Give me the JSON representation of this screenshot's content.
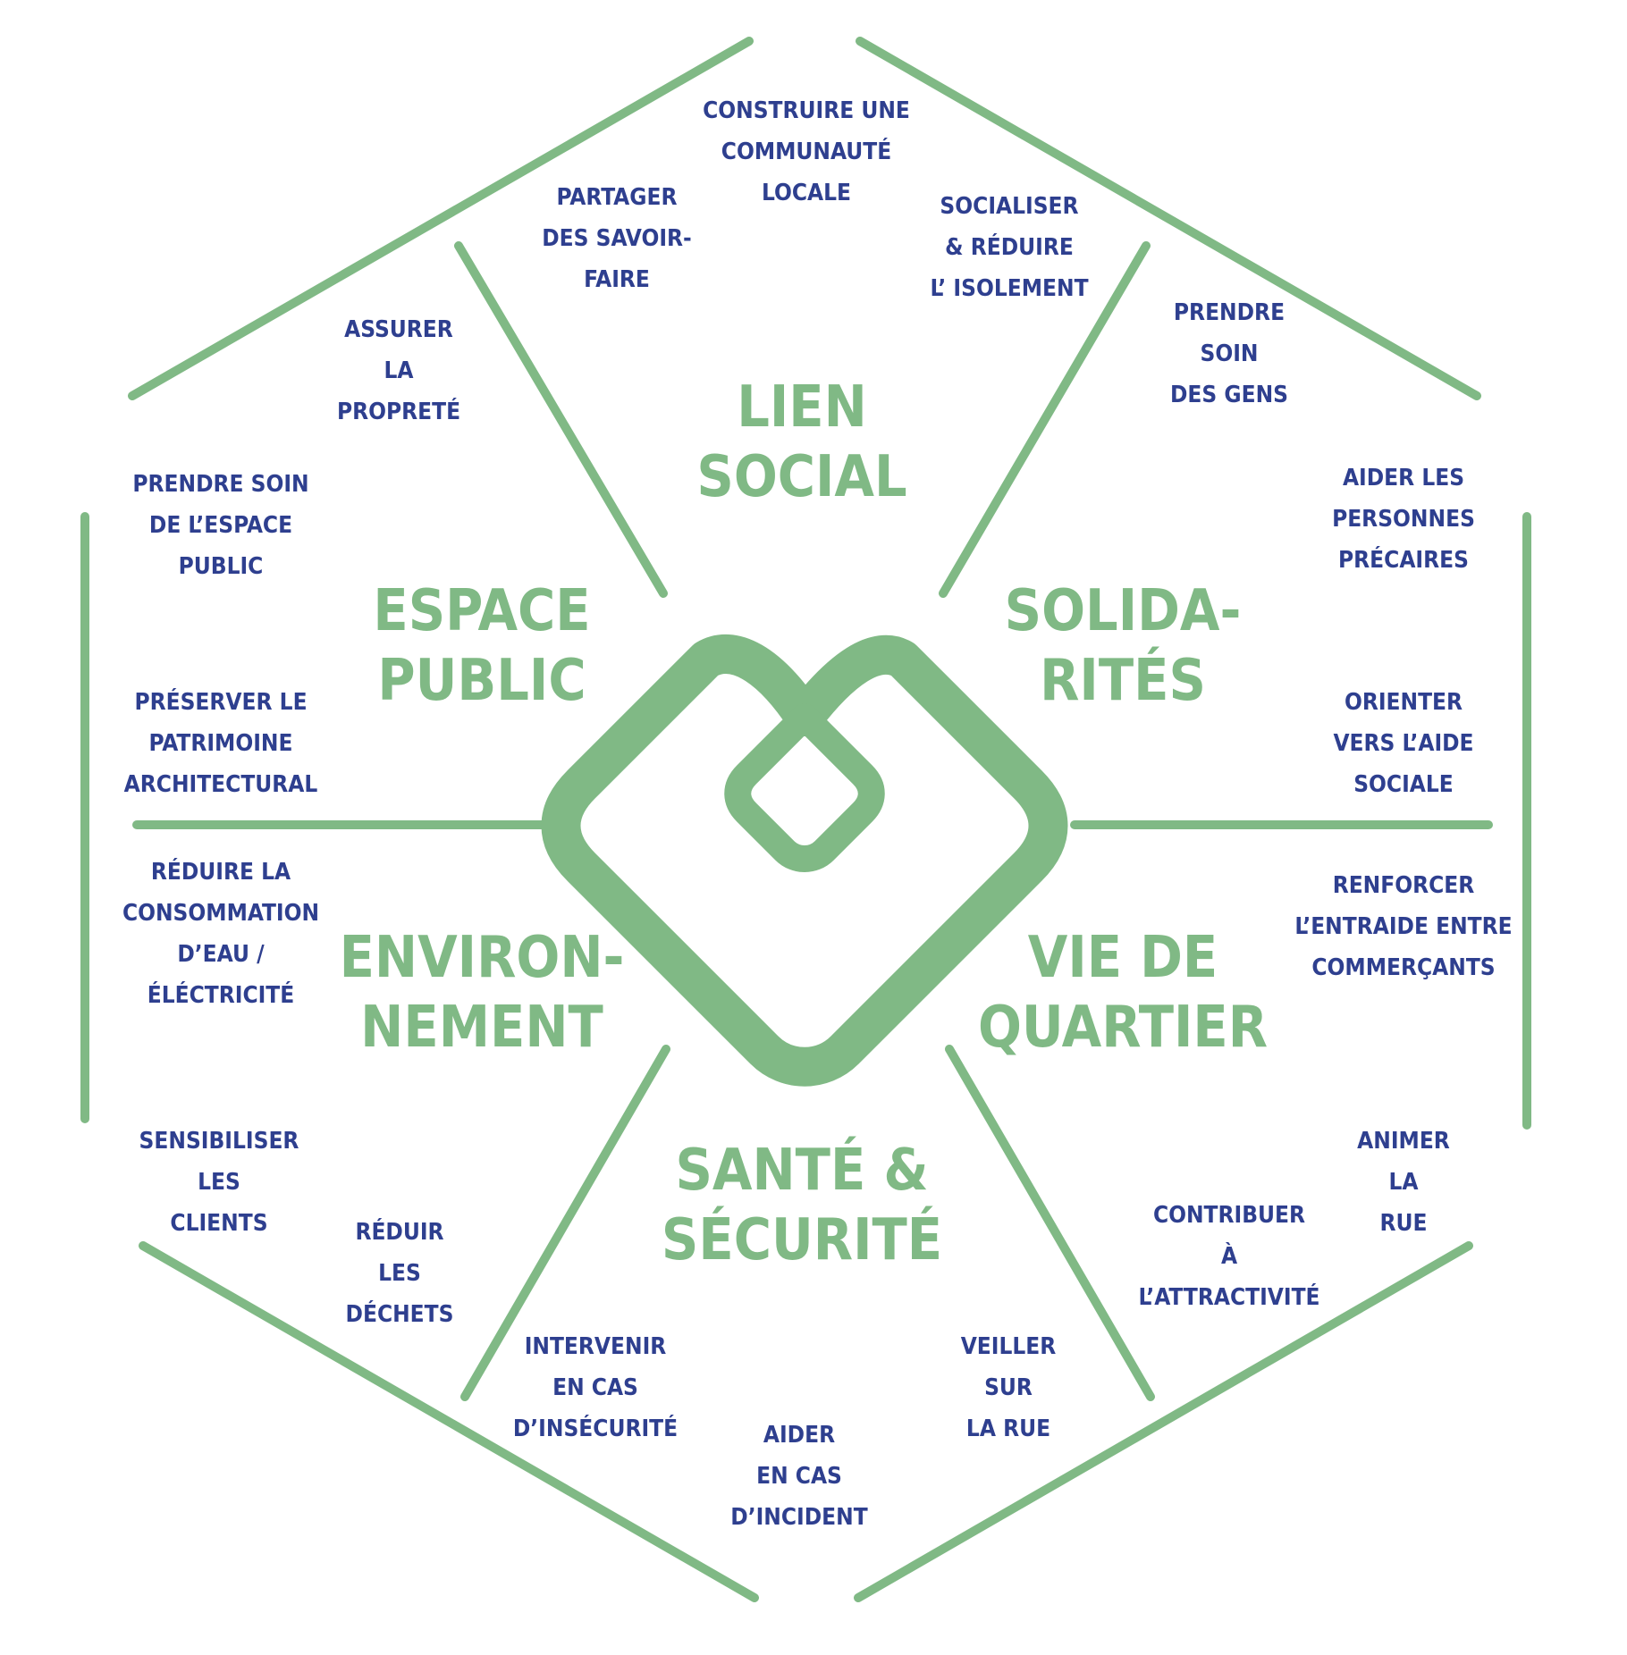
{
  "colors": {
    "green": "#80b985",
    "navy": "#2e3f8f",
    "background": "#ffffff"
  },
  "center_icon": "heart-logo-icon",
  "sectors": [
    {
      "id": "lien-social",
      "title": [
        "LIEN",
        "SOCIAL"
      ],
      "actions": [
        [
          "CONSTRUIRE UNE",
          "COMMUNAUTÉ",
          "LOCALE"
        ],
        [
          "PARTAGER",
          "DES SAVOIR-",
          "FAIRE"
        ],
        [
          "SOCIALISER",
          "& RÉDUIRE",
          "L’ ISOLEMENT"
        ]
      ]
    },
    {
      "id": "solidarites",
      "title": [
        "SOLIDA-",
        "RITÉS"
      ],
      "actions": [
        [
          "PRENDRE",
          "SOIN",
          "DES GENS"
        ],
        [
          "AIDER LES",
          "PERSONNES",
          "PRÉCAIRES"
        ],
        [
          "ORIENTER",
          "VERS L’AIDE",
          "SOCIALE"
        ]
      ]
    },
    {
      "id": "vie-de-quartier",
      "title": [
        "VIE DE",
        "QUARTIER"
      ],
      "actions": [
        [
          "RENFORCER",
          "L’ENTRAIDE ENTRE",
          "COMMERÇANTS"
        ],
        [
          "ANIMER",
          "LA",
          "RUE"
        ],
        [
          "CONTRIBUER",
          "À",
          "L’ATTRACTIVITÉ"
        ]
      ]
    },
    {
      "id": "sante-securite",
      "title": [
        "SANTÉ &",
        "SÉCURITÉ"
      ],
      "actions": [
        [
          "VEILLER",
          "SUR",
          "LA RUE"
        ],
        [
          "AIDER",
          "EN CAS",
          "D’INCIDENT"
        ],
        [
          "INTERVENIR",
          "EN CAS",
          "D’INSÉCURITÉ"
        ]
      ]
    },
    {
      "id": "environnement",
      "title": [
        "ENVIRON-",
        "NEMENT"
      ],
      "actions": [
        [
          "RÉDUIR",
          "LES",
          "DÉCHETS"
        ],
        [
          "SENSIBILISER",
          "LES",
          "CLIENTS"
        ],
        [
          "RÉDUIRE LA",
          "CONSOMMATION",
          "D’EAU /",
          "ÉLÉCTRICITÉ"
        ]
      ]
    },
    {
      "id": "espace-public",
      "title": [
        "ESPACE",
        "PUBLIC"
      ],
      "actions": [
        [
          "PRÉSERVER LE",
          "PATRIMOINE",
          "ARCHITECTURAL"
        ],
        [
          "PRENDRE SOIN",
          "DE L’ESPACE",
          "PUBLIC"
        ],
        [
          "ASSURER",
          "LA",
          "PROPRETÉ"
        ]
      ]
    }
  ]
}
